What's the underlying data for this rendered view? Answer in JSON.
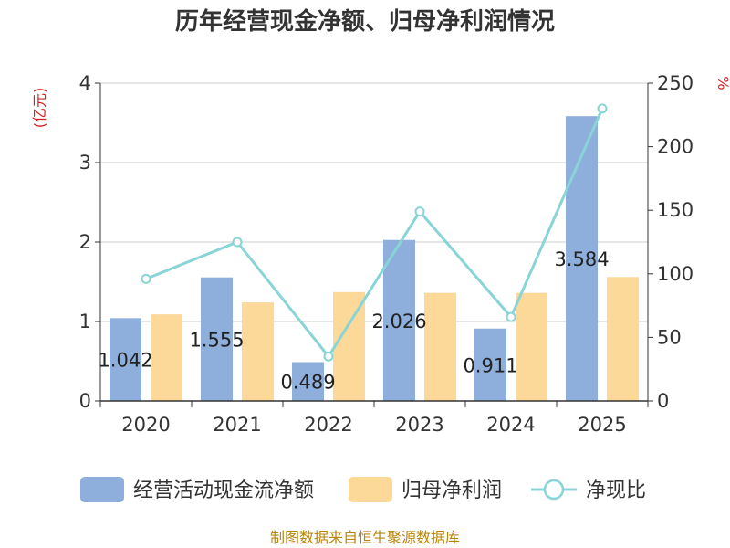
{
  "chart_data": {
    "type": "bar",
    "title": "历年经营现金净额、归母净利润情况",
    "categories": [
      "2020",
      "2021",
      "2022",
      "2023",
      "2024",
      "2025"
    ],
    "left_axis": {
      "unit": "(亿元)",
      "ylim": [
        0,
        4
      ],
      "ticks": [
        "0",
        "1",
        "2",
        "3",
        "4"
      ]
    },
    "right_axis": {
      "unit": "%",
      "ylim": [
        0,
        250
      ],
      "ticks": [
        "0",
        "50",
        "100",
        "150",
        "200",
        "250"
      ]
    },
    "series": [
      {
        "name": "经营活动现金流净额",
        "type": "bar",
        "axis": "left",
        "color": "#8eaedc",
        "values": [
          1.042,
          1.555,
          0.489,
          2.026,
          0.911,
          3.584
        ],
        "labels": [
          "1.042",
          "1.555",
          "0.489",
          "2.026",
          "0.911",
          "3.584"
        ]
      },
      {
        "name": "归母净利润",
        "type": "bar",
        "axis": "left",
        "color": "#fcd899",
        "values": [
          1.09,
          1.24,
          1.37,
          1.36,
          1.36,
          1.56
        ]
      },
      {
        "name": "净现比",
        "type": "line",
        "axis": "right",
        "color": "#88d4d6",
        "values": [
          96,
          125,
          35,
          149,
          66,
          230
        ]
      }
    ],
    "grid": true,
    "legend_position": "bottom"
  },
  "colors": {
    "title": "#333333",
    "unit_label": "#d42020",
    "source": "#b8860b",
    "axis": "#333333",
    "grid": "#cccccc"
  },
  "footer": {
    "source": "制图数据来自恒生聚源数据库"
  }
}
